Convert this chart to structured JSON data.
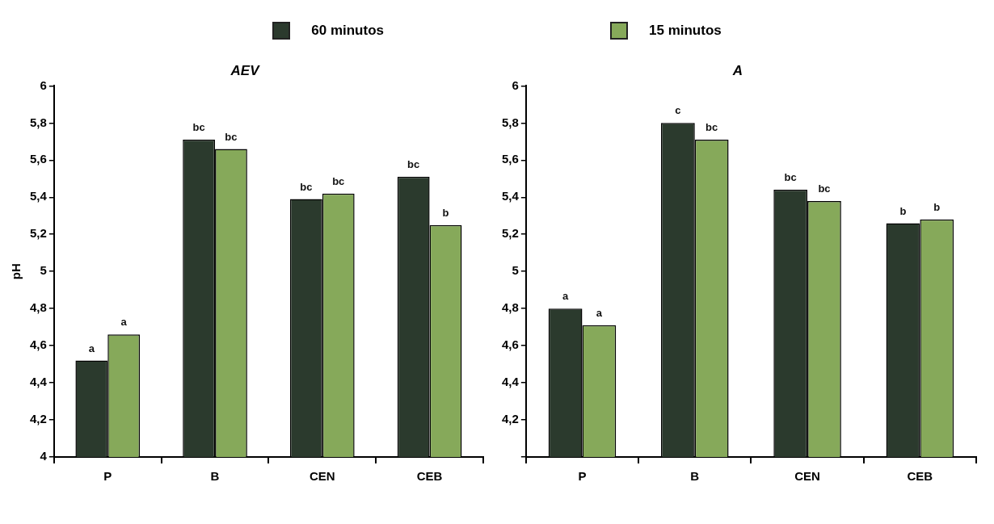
{
  "chart_data": [
    {
      "type": "bar",
      "title": "AEV",
      "ylabel": "pH",
      "categories": [
        "P",
        "B",
        "CEN",
        "CEB"
      ],
      "legend": "top",
      "grid": false,
      "series": [
        {
          "name": "60 minutos",
          "color": "#2b3a2d",
          "values": [
            4.52,
            5.71,
            5.39,
            5.51
          ],
          "value_labels": [
            "a",
            "bc",
            "bc",
            "bc"
          ]
        },
        {
          "name": "15 minutos",
          "color": "#86a95a",
          "values": [
            4.66,
            5.66,
            5.42,
            5.25
          ],
          "value_labels": [
            "a",
            "bc",
            "bc",
            "b"
          ]
        }
      ],
      "ylim": [
        4,
        6
      ],
      "yticks": [
        4,
        {
          "value": 4.2,
          "label": "4,2"
        },
        {
          "value": 4.4,
          "label": "4,4"
        },
        {
          "value": 4.6,
          "label": "4,6"
        },
        {
          "value": 4.8,
          "label": "4,8"
        },
        5,
        {
          "value": 5.2,
          "label": "5,2"
        },
        {
          "value": 5.4,
          "label": "5,4"
        },
        {
          "value": 5.6,
          "label": "5,6"
        },
        {
          "value": 5.8,
          "label": "5,8"
        },
        6
      ]
    },
    {
      "type": "bar",
      "title": "A",
      "categories": [
        "P",
        "B",
        "CEN",
        "CEB"
      ],
      "grid": false,
      "series": [
        {
          "color": "#2b3a2d",
          "values": [
            4.8,
            5.8,
            5.44,
            5.26
          ],
          "value_labels": [
            "a",
            "c",
            "bc",
            "b"
          ]
        },
        {
          "color": "#86a95a",
          "values": [
            4.71,
            5.71,
            5.38,
            5.28
          ],
          "value_labels": [
            "a",
            "bc",
            "bc",
            "b"
          ]
        }
      ],
      "ylim": [
        4,
        6
      ],
      "yticks": [
        {
          "value": 4,
          "label": null
        },
        {
          "value": 4.2,
          "label": "4,2"
        },
        {
          "value": 4.4,
          "label": "4,4"
        },
        {
          "value": 4.6,
          "label": "4,6"
        },
        {
          "value": 4.8,
          "label": "4,8"
        },
        5,
        {
          "value": 5.2,
          "label": "5,2"
        },
        {
          "value": 5.4,
          "label": "5,4"
        },
        {
          "value": 5.6,
          "label": "5,6"
        },
        {
          "value": 5.8,
          "label": "5,8"
        },
        6
      ]
    }
  ]
}
